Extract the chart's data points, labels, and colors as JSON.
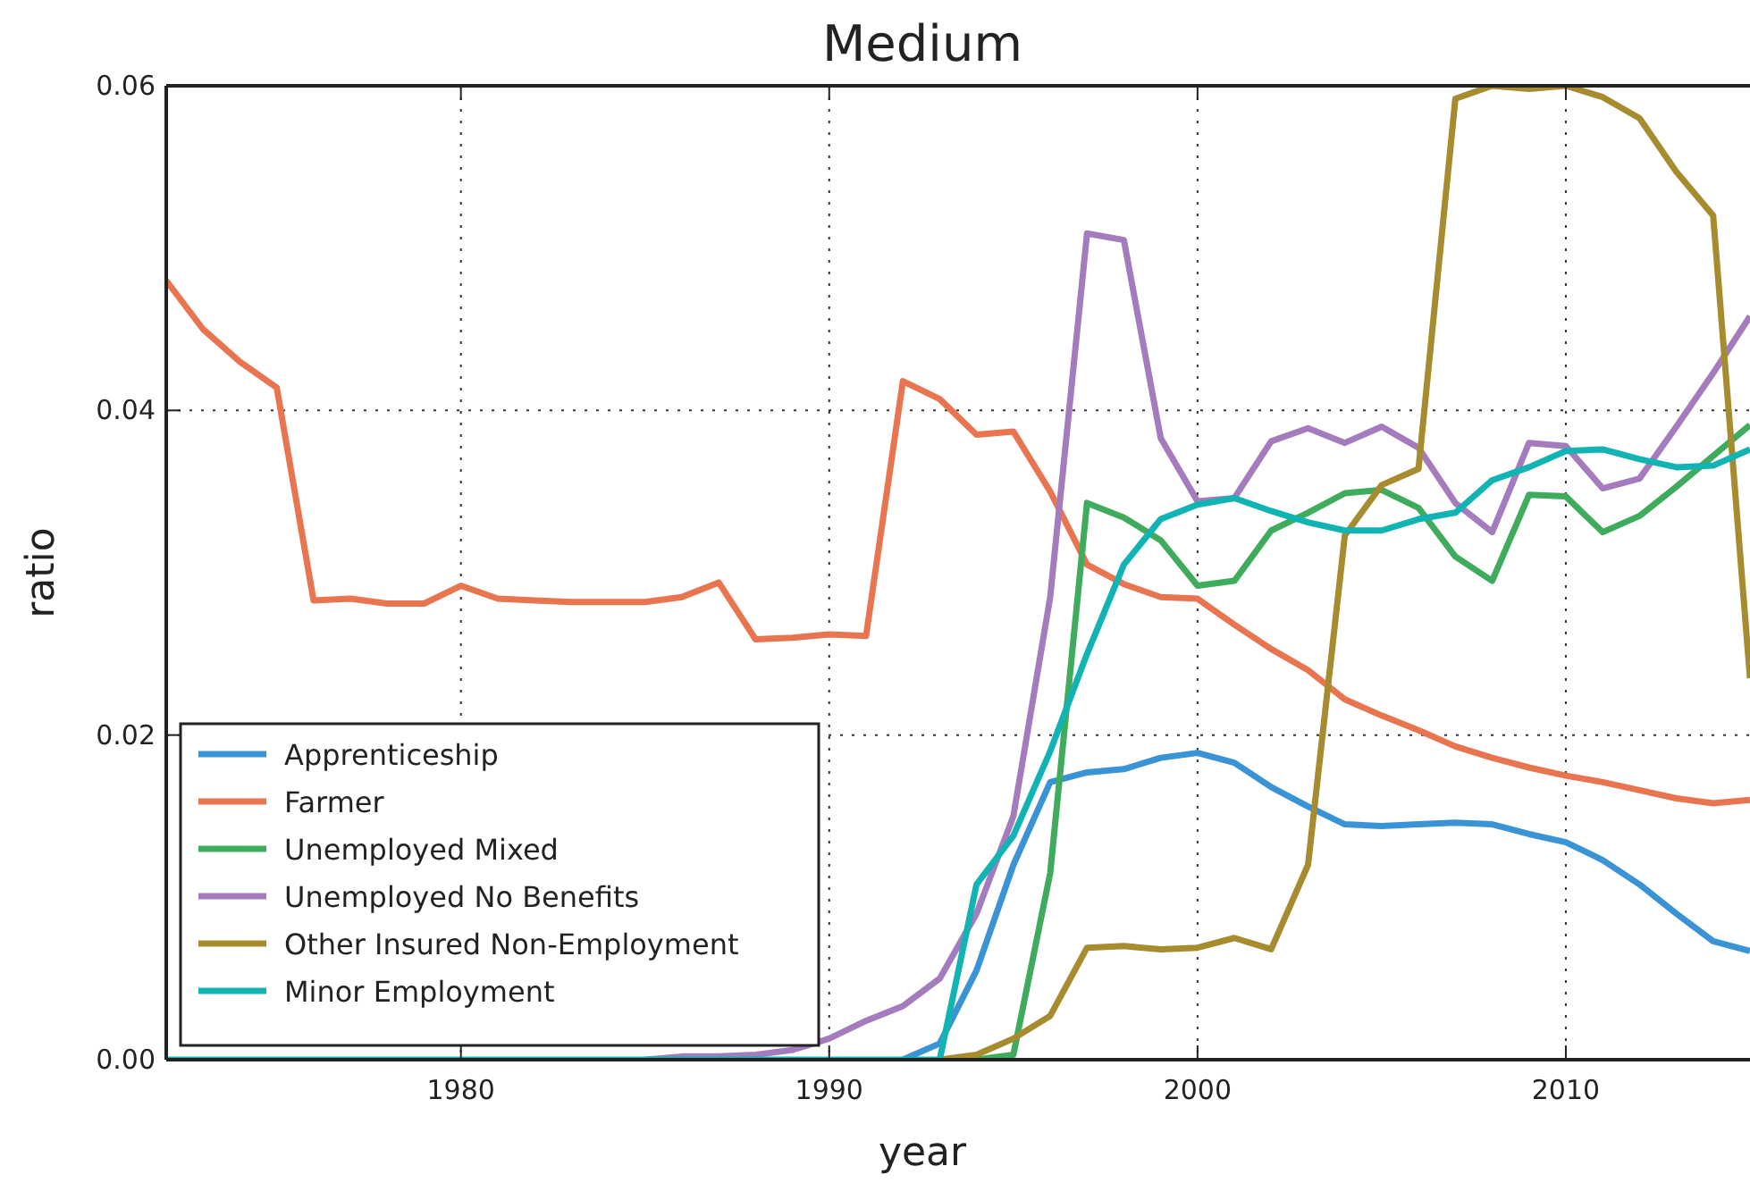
{
  "chart_data": {
    "type": "line",
    "title": "Medium",
    "xlabel": "year",
    "ylabel": "ratio",
    "x": [
      1972,
      1973,
      1974,
      1975,
      1976,
      1977,
      1978,
      1979,
      1980,
      1981,
      1982,
      1983,
      1984,
      1985,
      1986,
      1987,
      1988,
      1989,
      1990,
      1991,
      1992,
      1993,
      1994,
      1995,
      1996,
      1997,
      1998,
      1999,
      2000,
      2001,
      2002,
      2003,
      2004,
      2005,
      2006,
      2007,
      2008,
      2009,
      2010,
      2011,
      2012,
      2013,
      2014,
      2015
    ],
    "xlim": [
      1972,
      2015
    ],
    "xticks": [
      1980,
      1990,
      2000,
      2010
    ],
    "ylim": [
      0,
      0.06
    ],
    "yticks": [
      {
        "value": 0,
        "label": "0.00"
      },
      {
        "value": 0.02,
        "label": "0.02"
      },
      {
        "value": 0.04,
        "label": "0.04"
      },
      {
        "value": 0.06,
        "label": "0.06"
      }
    ],
    "grid": true,
    "legend": "bottom left",
    "line_style": "solid",
    "series": [
      {
        "name": "Apprenticeship",
        "color": "#3a93d4",
        "values": [
          null,
          null,
          null,
          null,
          null,
          null,
          null,
          null,
          null,
          null,
          null,
          null,
          null,
          null,
          null,
          null,
          null,
          null,
          null,
          null,
          0,
          0.001,
          0.0055,
          0.012,
          0.0171,
          0.0177,
          0.0179,
          0.0186,
          0.0189,
          0.0183,
          0.0168,
          0.0156,
          0.0145,
          0.0144,
          0.0145,
          0.0146,
          0.0145,
          0.0139,
          0.0134,
          0.0123,
          0.0108,
          0.009,
          0.0073,
          0.0067
        ]
      },
      {
        "name": "Farmer",
        "color": "#e8754f",
        "values": [
          0.048,
          0.045,
          0.043,
          0.0414,
          0.0283,
          0.0284,
          0.0281,
          0.0281,
          0.0292,
          0.0284,
          0.0283,
          0.0282,
          0.0282,
          0.0282,
          0.0285,
          0.0294,
          0.0259,
          0.026,
          0.0262,
          0.0261,
          0.0418,
          0.0407,
          0.0385,
          0.0387,
          0.035,
          0.0305,
          0.0293,
          0.0285,
          0.0284,
          0.0268,
          0.0253,
          0.024,
          0.0222,
          0.0212,
          0.0203,
          0.0193,
          0.0186,
          0.018,
          0.0175,
          0.0171,
          0.0166,
          0.0161,
          0.0158,
          0.016
        ]
      },
      {
        "name": "Unemployed Mixed",
        "color": "#3fab5c",
        "values": [
          null,
          null,
          null,
          null,
          null,
          null,
          null,
          null,
          null,
          null,
          null,
          null,
          null,
          null,
          null,
          null,
          null,
          null,
          null,
          null,
          null,
          null,
          0,
          0.0003,
          0.0115,
          0.0343,
          0.0334,
          0.032,
          0.0292,
          0.0295,
          0.0326,
          0.0337,
          0.0349,
          0.0351,
          0.034,
          0.031,
          0.0295,
          0.0348,
          0.0347,
          0.0325,
          0.0335,
          0.0353,
          0.0372,
          0.0391
        ]
      },
      {
        "name": "Unemployed No Benefits",
        "color": "#a47bbd",
        "values": [
          null,
          null,
          null,
          null,
          null,
          null,
          null,
          null,
          null,
          null,
          null,
          null,
          null,
          0,
          0.0002,
          0.0002,
          0.0003,
          0.0006,
          0.0013,
          0.0024,
          0.0033,
          0.005,
          0.009,
          0.015,
          0.0285,
          0.0509,
          0.0505,
          0.0383,
          0.0344,
          0.0346,
          0.0381,
          0.0389,
          0.038,
          0.039,
          0.0377,
          0.0343,
          0.0325,
          0.038,
          0.0378,
          0.0352,
          0.0358,
          0.039,
          0.0423,
          0.0458
        ]
      },
      {
        "name": "Other Insured Non-Employment",
        "color": "#a68c2e",
        "values": [
          null,
          null,
          null,
          null,
          null,
          null,
          null,
          null,
          null,
          null,
          null,
          null,
          null,
          null,
          null,
          null,
          null,
          null,
          null,
          null,
          null,
          0,
          0.0003,
          0.0013,
          0.0027,
          0.0069,
          0.007,
          0.0068,
          0.0069,
          0.0075,
          0.0068,
          0.012,
          0.0323,
          0.0354,
          0.0364,
          0.0592,
          0.06,
          0.0598,
          0.06,
          0.0593,
          0.058,
          0.0547,
          0.052,
          0.0235
        ]
      },
      {
        "name": "Minor Employment",
        "color": "#12b3b3",
        "values": [
          0,
          0,
          0,
          0,
          0,
          0,
          0,
          0,
          0,
          0,
          0,
          0,
          0,
          0,
          0,
          0,
          0,
          0,
          0,
          0,
          0,
          0,
          0.0108,
          0.0138,
          0.019,
          0.025,
          0.0305,
          0.0333,
          0.0342,
          0.0346,
          0.0338,
          0.0331,
          0.0326,
          0.0326,
          0.0333,
          0.0337,
          0.0357,
          0.0365,
          0.0375,
          0.0376,
          0.037,
          0.0365,
          0.0366,
          0.0376
        ]
      }
    ]
  }
}
